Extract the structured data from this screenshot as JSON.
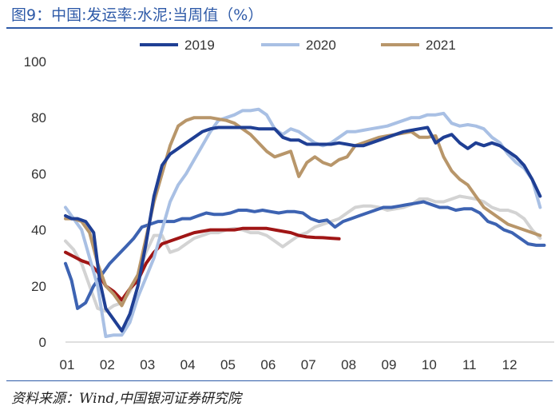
{
  "header": {
    "title": "图9：中国:发运率:水泥:当周值（%）"
  },
  "footer": {
    "source": "资料来源：Wind,中国银河证券研究院"
  },
  "chart_data": {
    "type": "line",
    "title": "图9：中国:发运率:水泥:当周值（%）",
    "xlabel": "",
    "ylabel": "",
    "ylim": [
      0,
      100
    ],
    "yticks": [
      "0",
      "20",
      "40",
      "60",
      "80",
      "100"
    ],
    "xticks": [
      "01",
      "02",
      "03",
      "04",
      "05",
      "06",
      "07",
      "08",
      "09",
      "10",
      "11",
      "12"
    ],
    "grid": false,
    "legend_position": "top",
    "series": [
      {
        "name": "2019",
        "color": "#1f3f94",
        "x": [
          1.0,
          1.15,
          1.3,
          1.5,
          1.7,
          1.85,
          2.0,
          2.2,
          2.4,
          2.6,
          2.8,
          3.0,
          3.2,
          3.4,
          3.6,
          3.8,
          4.0,
          4.2,
          4.4,
          4.6,
          4.8,
          5.0,
          5.2,
          5.4,
          5.6,
          5.8,
          6.0,
          6.2,
          6.4,
          6.6,
          6.8,
          7.0,
          7.2,
          7.4,
          7.6,
          7.8,
          8.0,
          8.2,
          8.4,
          8.6,
          8.8,
          9.0,
          9.2,
          9.4,
          9.6,
          9.8,
          10.0,
          10.2,
          10.4,
          10.6,
          10.8,
          11.0,
          11.2,
          11.4,
          11.6,
          11.8,
          12.0,
          12.2,
          12.4,
          12.6,
          12.8
        ],
        "values": [
          45,
          44,
          44,
          43,
          39,
          22,
          12,
          8,
          4,
          10,
          20,
          35,
          52,
          63,
          67,
          69,
          71,
          73,
          75,
          76,
          76.5,
          76.5,
          76.5,
          76.5,
          76.5,
          76,
          76,
          76,
          73,
          72,
          72,
          70.5,
          70.5,
          70.5,
          70.5,
          71,
          70.5,
          70,
          70,
          71,
          72,
          73,
          74,
          75,
          75.5,
          76,
          76.5,
          71,
          73,
          74,
          71,
          69,
          71,
          70,
          71,
          70,
          68,
          66,
          63,
          58,
          52
        ]
      },
      {
        "name": "2020",
        "color": "#a9c0e4",
        "x": [
          1.0,
          1.2,
          1.4,
          1.6,
          1.8,
          2.0,
          2.2,
          2.4,
          2.6,
          2.8,
          3.0,
          3.2,
          3.4,
          3.6,
          3.8,
          4.0,
          4.2,
          4.4,
          4.6,
          4.8,
          5.0,
          5.2,
          5.4,
          5.6,
          5.8,
          6.0,
          6.2,
          6.4,
          6.6,
          6.8,
          7.0,
          7.2,
          7.4,
          7.6,
          7.8,
          8.0,
          8.2,
          8.4,
          8.6,
          8.8,
          9.0,
          9.2,
          9.4,
          9.6,
          9.8,
          10.0,
          10.2,
          10.4,
          10.6,
          10.8,
          11.0,
          11.2,
          11.4,
          11.6,
          11.8,
          12.0,
          12.2,
          12.4,
          12.6,
          12.8
        ],
        "values": [
          48,
          44,
          40,
          30,
          20,
          2,
          2.5,
          2.5,
          7,
          16,
          23,
          30,
          40,
          50,
          56,
          60,
          65,
          70,
          75,
          79,
          80,
          81,
          82.5,
          82.5,
          83,
          81,
          76,
          74,
          76,
          75,
          73,
          71,
          70,
          71,
          73,
          75,
          75,
          75.5,
          76,
          76.5,
          77,
          78,
          79,
          80,
          80,
          81,
          81,
          81.5,
          78,
          77,
          77.5,
          77,
          76,
          73,
          71,
          67,
          64,
          62,
          58,
          48
        ]
      },
      {
        "name": "2021",
        "color": "#b8966a",
        "x": [
          1.0,
          1.2,
          1.4,
          1.6,
          1.8,
          2.0,
          2.2,
          2.4,
          2.6,
          2.8,
          3.0,
          3.2,
          3.4,
          3.6,
          3.8,
          4.0,
          4.2,
          4.4,
          4.6,
          4.8,
          5.0,
          5.2,
          5.4,
          5.6,
          5.8,
          6.0,
          6.2,
          6.4,
          6.6,
          6.8,
          7.0,
          7.2,
          7.4,
          7.6,
          7.8,
          8.0,
          8.2,
          8.4,
          8.6,
          8.8,
          9.0,
          9.2,
          9.4,
          9.6,
          9.8,
          10.0,
          10.2,
          10.4,
          10.6,
          10.8,
          11.0,
          11.2,
          11.4,
          11.6,
          11.8,
          12.0,
          12.2,
          12.4,
          12.6,
          12.8
        ],
        "values": [
          44,
          44,
          43,
          39,
          28,
          20,
          17,
          13,
          19,
          24,
          37,
          50,
          60,
          70,
          77,
          79,
          80,
          80,
          80,
          79.5,
          79,
          78,
          76,
          74,
          71,
          68,
          66,
          67,
          68,
          59,
          64,
          66,
          64,
          63,
          65,
          66,
          70,
          71,
          72,
          73,
          73.5,
          74,
          74.5,
          75,
          73,
          73,
          73.5,
          66,
          61,
          58,
          56,
          52,
          48,
          46,
          44,
          42,
          41,
          40,
          39,
          38
        ]
      },
      {
        "name": "",
        "color": "#3d63b2",
        "x": [
          1.0,
          1.15,
          1.3,
          1.5,
          1.7,
          1.9,
          2.1,
          2.3,
          2.5,
          2.7,
          2.9,
          3.1,
          3.3,
          3.5,
          3.7,
          3.9,
          4.1,
          4.3,
          4.5,
          4.7,
          4.9,
          5.1,
          5.3,
          5.5,
          5.7,
          5.9,
          6.1,
          6.3,
          6.5,
          6.7,
          6.9,
          7.1,
          7.3,
          7.5,
          7.7,
          7.9,
          8.1,
          8.3,
          8.5,
          8.7,
          8.9,
          9.1,
          9.3,
          9.5,
          9.7,
          9.9,
          10.1,
          10.3,
          10.5,
          10.7,
          10.9,
          11.1,
          11.3,
          11.5,
          11.7,
          11.9,
          12.1,
          12.3,
          12.5,
          12.7,
          12.9
        ],
        "values": [
          28,
          22,
          12,
          14,
          20,
          24,
          28,
          31,
          34,
          37,
          41,
          42,
          43,
          43,
          43,
          44,
          44,
          45,
          46,
          45.5,
          45.5,
          46,
          47,
          47,
          46.5,
          47,
          46.5,
          46,
          46.5,
          46.5,
          46,
          44,
          43,
          43.5,
          41,
          43,
          44,
          45,
          46,
          47,
          48,
          48,
          48.5,
          49,
          49.5,
          50,
          49,
          48,
          48,
          47,
          47.5,
          47.5,
          46,
          43,
          42,
          40,
          39,
          37,
          35,
          34.5,
          34.5
        ]
      },
      {
        "name": "",
        "color": "#d3d3d3",
        "x": [
          1.0,
          1.2,
          1.4,
          1.6,
          1.8,
          2.0,
          2.2,
          2.4,
          2.6,
          2.8,
          3.0,
          3.2,
          3.4,
          3.6,
          3.8,
          4.0,
          4.2,
          4.4,
          4.6,
          4.8,
          5.0,
          5.2,
          5.4,
          5.6,
          5.8,
          6.0,
          6.2,
          6.4,
          6.6,
          6.8,
          7.0,
          7.2,
          7.4,
          7.6,
          7.8,
          8.0,
          8.2,
          8.4,
          8.6,
          8.8,
          9.0,
          9.2,
          9.4,
          9.6,
          9.8,
          10.0,
          10.2,
          10.4,
          10.6,
          10.8,
          11.0,
          11.2,
          11.4,
          11.6,
          11.8,
          12.0,
          12.2,
          12.4,
          12.6,
          12.8
        ],
        "values": [
          36,
          33,
          28,
          20,
          12,
          11,
          13,
          14,
          18,
          24,
          32,
          38,
          38,
          32,
          33,
          35,
          37,
          38,
          39,
          39,
          40,
          40.5,
          40,
          39,
          39,
          38,
          36,
          34,
          36,
          38,
          39,
          41,
          42,
          43,
          44,
          46,
          48,
          48.5,
          48.5,
          48,
          47,
          47.5,
          48,
          49,
          51,
          51,
          50,
          50,
          51,
          52,
          51.5,
          51,
          50,
          48,
          47,
          47,
          46,
          44,
          40,
          37
        ]
      },
      {
        "name": "",
        "color": "#a01515",
        "x": [
          1.0,
          1.2,
          1.4,
          1.6,
          1.8,
          2.0,
          2.2,
          2.4,
          2.6,
          2.8,
          3.0,
          3.2,
          3.4,
          3.6,
          3.8,
          4.0,
          4.2,
          4.4,
          4.6,
          4.8,
          5.0,
          5.2,
          5.4,
          5.6,
          5.8,
          6.0,
          6.2,
          6.4,
          6.6,
          6.8,
          7.0,
          7.2,
          7.4,
          7.6,
          7.8
        ],
        "values": [
          32,
          30.5,
          29,
          28,
          25,
          20,
          18,
          15,
          19,
          22,
          28,
          32,
          35,
          36,
          37,
          38,
          39,
          39.5,
          40,
          40,
          40,
          40,
          40.5,
          40.5,
          40.5,
          40.5,
          40,
          39.5,
          39,
          38,
          37.5,
          37.3,
          37.2,
          37,
          36.8
        ]
      }
    ]
  }
}
